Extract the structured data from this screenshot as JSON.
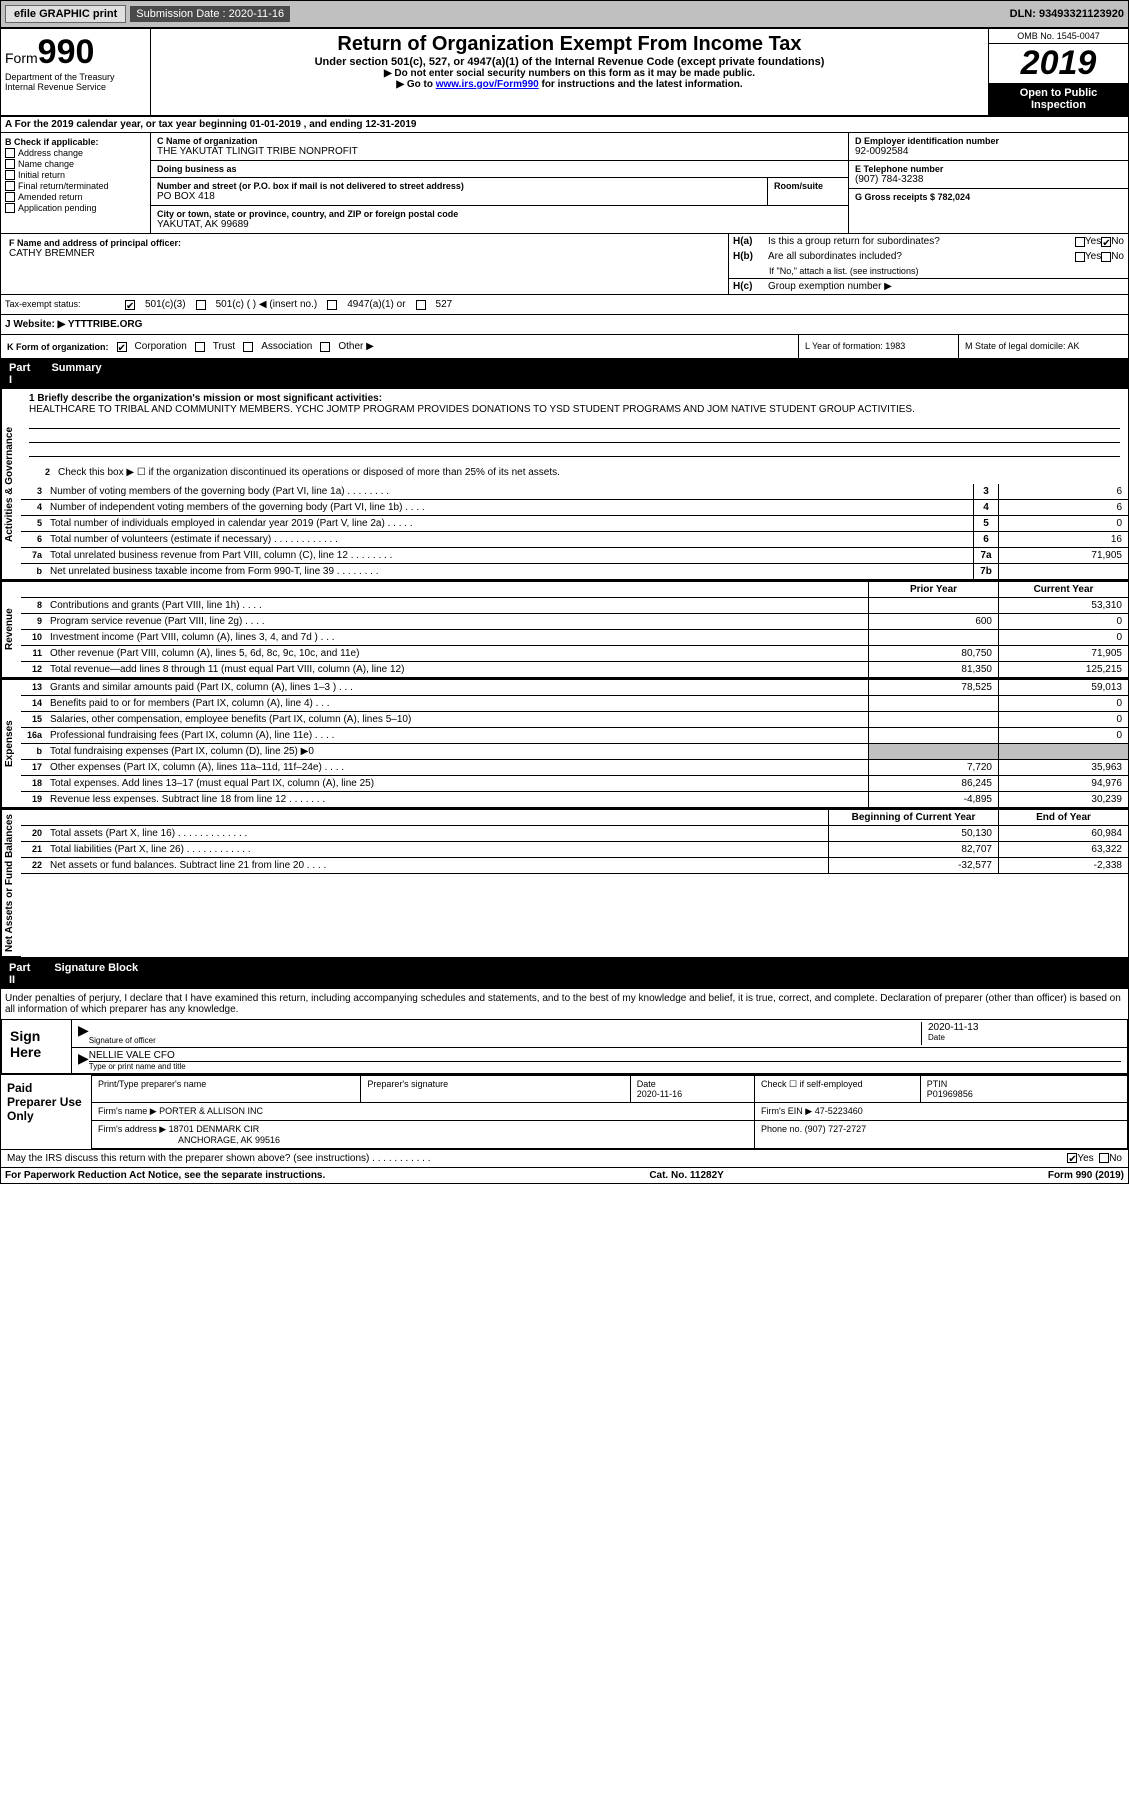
{
  "topbar": {
    "efile": "efile GRAPHIC print",
    "sub_label": "Submission Date : 2020-11-16",
    "dln": "DLN: 93493321123920"
  },
  "header": {
    "form": "Form",
    "form_num": "990",
    "title": "Return of Organization Exempt From Income Tax",
    "sub": "Under section 501(c), 527, or 4947(a)(1) of the Internal Revenue Code (except private foundations)",
    "instr1": "▶ Do not enter social security numbers on this form as it may be made public.",
    "instr2_pre": "▶ Go to ",
    "instr2_link": "www.irs.gov/Form990",
    "instr2_post": " for instructions and the latest information.",
    "omb": "OMB No. 1545-0047",
    "year": "2019",
    "open": "Open to Public Inspection",
    "dept": "Department of the Treasury Internal Revenue Service"
  },
  "taxyear": "A For the 2019 calendar year, or tax year beginning 01-01-2019   , and ending 12-31-2019",
  "box_b": {
    "label": "B Check if applicable:",
    "items": [
      "Address change",
      "Name change",
      "Initial return",
      "Final return/terminated",
      "Amended return",
      "Application pending"
    ]
  },
  "box_c": {
    "name_label": "C Name of organization",
    "name": "THE YAKUTAT TLINGIT TRIBE NONPROFIT",
    "dba_label": "Doing business as",
    "addr_label": "Number and street (or P.O. box if mail is not delivered to street address)",
    "room_label": "Room/suite",
    "addr": "PO BOX 418",
    "city_label": "City or town, state or province, country, and ZIP or foreign postal code",
    "city": "YAKUTAT, AK  99689"
  },
  "box_d": {
    "label": "D Employer identification number",
    "val": "92-0092584"
  },
  "box_e": {
    "label": "E Telephone number",
    "val": "(907) 784-3238"
  },
  "box_g": {
    "label": "G Gross receipts $ 782,024"
  },
  "box_f": {
    "label": "F  Name and address of principal officer:",
    "val": "CATHY BREMNER"
  },
  "box_h": {
    "ha_label": "Is this a group return for subordinates?",
    "ha_yes": "Yes",
    "ha_no": "No",
    "hb_label": "Are all subordinates included?",
    "hb_note": "If \"No,\" attach a list. (see instructions)",
    "hc_label": "Group exemption number ▶"
  },
  "tax_exempt": {
    "label": "Tax-exempt status:",
    "opt1": "501(c)(3)",
    "opt2": "501(c) (  ) ◀ (insert no.)",
    "opt3": "4947(a)(1) or",
    "opt4": "527"
  },
  "website": {
    "label": "J   Website: ▶",
    "val": "YTTTRIBE.ORG"
  },
  "box_k": {
    "label": "K Form of organization:",
    "opts": [
      "Corporation",
      "Trust",
      "Association",
      "Other ▶"
    ]
  },
  "box_l": {
    "label": "L Year of formation: 1983"
  },
  "box_m": {
    "label": "M State of legal domicile: AK"
  },
  "part1": {
    "header": "Part I",
    "title": "Summary",
    "line1_label": "1  Briefly describe the organization's mission or most significant activities:",
    "mission": "HEALTHCARE TO TRIBAL AND COMMUNITY MEMBERS. YCHC JOMTP PROGRAM PROVIDES DONATIONS TO YSD STUDENT PROGRAMS AND JOM NATIVE STUDENT GROUP ACTIVITIES.",
    "line2": "Check this box ▶ ☐  if the organization discontinued its operations or disposed of more than 25% of its net assets.",
    "rows_gov": [
      {
        "n": "3",
        "t": "Number of voting members of the governing body (Part VI, line 1a)  .   .   .   .   .   .   .   .",
        "b": "3",
        "v": "6"
      },
      {
        "n": "4",
        "t": "Number of independent voting members of the governing body (Part VI, line 1b)   .   .   .   .",
        "b": "4",
        "v": "6"
      },
      {
        "n": "5",
        "t": "Total number of individuals employed in calendar year 2019 (Part V, line 2a)   .   .   .   .   .",
        "b": "5",
        "v": "0"
      },
      {
        "n": "6",
        "t": "Total number of volunteers (estimate if necessary)    .    .    .    .    .    .    .    .    .    .    .    .",
        "b": "6",
        "v": "16"
      },
      {
        "n": "7a",
        "t": "Total unrelated business revenue from Part VIII, column (C), line 12   .   .   .   .   .   .   .   .",
        "b": "7a",
        "v": "71,905"
      },
      {
        "n": "b",
        "t": "Net unrelated business taxable income from Form 990-T, line 39    .    .    .    .    .    .    .    .",
        "b": "7b",
        "v": ""
      }
    ],
    "col_prior": "Prior Year",
    "col_current": "Current Year",
    "rows_rev": [
      {
        "n": "8",
        "t": "Contributions and grants (Part VIII, line 1h)   .   .   .   .",
        "p": "",
        "c": "53,310"
      },
      {
        "n": "9",
        "t": "Program service revenue (Part VIII, line 2g)   .   .   .   .",
        "p": "600",
        "c": "0"
      },
      {
        "n": "10",
        "t": "Investment income (Part VIII, column (A), lines 3, 4, and 7d )    .    .    .",
        "p": "",
        "c": "0"
      },
      {
        "n": "11",
        "t": "Other revenue (Part VIII, column (A), lines 5, 6d, 8c, 9c, 10c, and 11e)",
        "p": "80,750",
        "c": "71,905"
      },
      {
        "n": "12",
        "t": "Total revenue—add lines 8 through 11 (must equal Part VIII, column (A), line 12)",
        "p": "81,350",
        "c": "125,215"
      }
    ],
    "rows_exp": [
      {
        "n": "13",
        "t": "Grants and similar amounts paid (Part IX, column (A), lines 1–3 )    .    .    .",
        "p": "78,525",
        "c": "59,013"
      },
      {
        "n": "14",
        "t": "Benefits paid to or for members (Part IX, column (A), line 4)   .   .   .",
        "p": "",
        "c": "0"
      },
      {
        "n": "15",
        "t": "Salaries, other compensation, employee benefits (Part IX, column (A), lines 5–10)",
        "p": "",
        "c": "0"
      },
      {
        "n": "16a",
        "t": "Professional fundraising fees (Part IX, column (A), line 11e)   .   .   .   .",
        "p": "",
        "c": "0"
      },
      {
        "n": "b",
        "t": "Total fundraising expenses (Part IX, column (D), line 25) ▶0",
        "p": "shaded",
        "c": "shaded"
      },
      {
        "n": "17",
        "t": "Other expenses (Part IX, column (A), lines 11a–11d, 11f–24e)   .   .   .   .",
        "p": "7,720",
        "c": "35,963"
      },
      {
        "n": "18",
        "t": "Total expenses. Add lines 13–17 (must equal Part IX, column (A), line 25)",
        "p": "86,245",
        "c": "94,976"
      },
      {
        "n": "19",
        "t": "Revenue less expenses. Subtract line 18 from line 12 .   .   .   .   .   .   .",
        "p": "-4,895",
        "c": "30,239"
      }
    ],
    "col_begin": "Beginning of Current Year",
    "col_end": "End of Year",
    "rows_net": [
      {
        "n": "20",
        "t": "Total assets (Part X, line 16)   .   .   .   .   .   .   .   .   .   .   .   .   .",
        "p": "50,130",
        "c": "60,984"
      },
      {
        "n": "21",
        "t": "Total liabilities (Part X, line 26)   .   .   .   .   .   .   .   .   .   .   .   .",
        "p": "82,707",
        "c": "63,322"
      },
      {
        "n": "22",
        "t": "Net assets or fund balances. Subtract line 21 from line 20   .   .   .   .",
        "p": "-32,577",
        "c": "-2,338"
      }
    ]
  },
  "sides": {
    "gov": "Activities & Governance",
    "rev": "Revenue",
    "exp": "Expenses",
    "net": "Net Assets or Fund Balances"
  },
  "part2": {
    "header": "Part II",
    "title": "Signature Block",
    "decl": "Under penalties of perjury, I declare that I have examined this return, including accompanying schedules and statements, and to the best of my knowledge and belief, it is true, correct, and complete. Declaration of preparer (other than officer) is based on all information of which preparer has any knowledge."
  },
  "sign": {
    "label": "Sign Here",
    "sig_of": "Signature of officer",
    "date": "2020-11-13",
    "date_label": "Date",
    "name": "NELLIE VALE  CFO",
    "name_label": "Type or print name and title"
  },
  "prep": {
    "label": "Paid Preparer Use Only",
    "print_label": "Print/Type preparer's name",
    "sig_label": "Preparer's signature",
    "date_label": "Date",
    "date": "2020-11-16",
    "check_label": "Check ☐ if self-employed",
    "ptin_label": "PTIN",
    "ptin": "P01969856",
    "firm_name_label": "Firm's name     ▶",
    "firm_name": "PORTER & ALLISON INC",
    "firm_ein_label": "Firm's EIN ▶",
    "firm_ein": "47-5223460",
    "firm_addr_label": "Firm's address ▶",
    "firm_addr1": "18701 DENMARK CIR",
    "firm_addr2": "ANCHORAGE, AK  99516",
    "phone_label": "Phone no. (907) 727-2727"
  },
  "discuss": {
    "text": "May the IRS discuss this return with the preparer shown above? (see instructions)   .    .    .    .    .    .    .    .    .    .    .",
    "yes": "Yes",
    "no": "No"
  },
  "footer": {
    "left": "For Paperwork Reduction Act Notice, see the separate instructions.",
    "mid": "Cat. No. 11282Y",
    "right": "Form 990 (2019)"
  }
}
